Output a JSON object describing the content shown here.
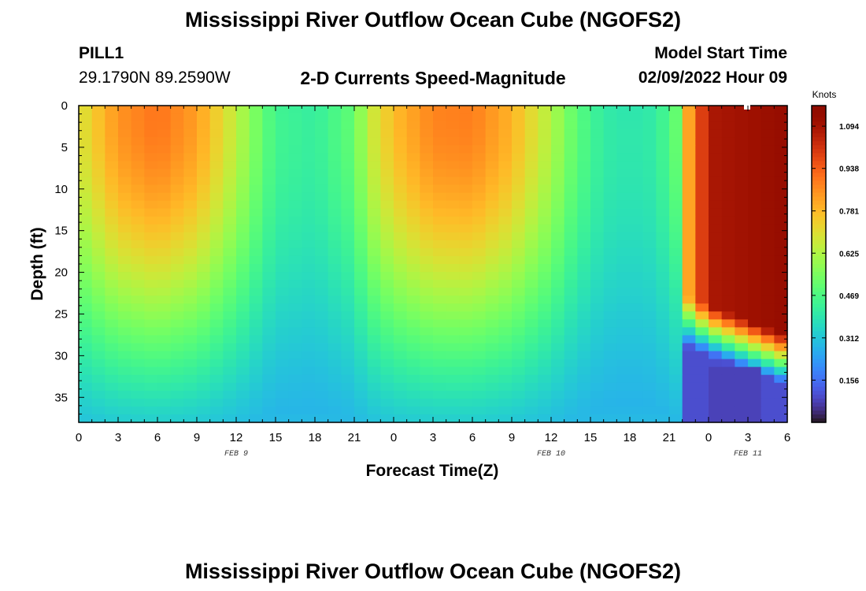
{
  "header": {
    "title": "Mississippi River Outflow Ocean Cube (NGOFS2)",
    "station_id": "PILL1",
    "station_coords": "29.1790N  89.2590W",
    "subtitle": "2-D Currents Speed-Magnitude",
    "model_start_label": "Model Start Time",
    "model_start_value": "02/09/2022 Hour 09"
  },
  "footer": {
    "title": "Mississippi River Outflow Ocean Cube (NGOFS2)"
  },
  "chart_data": {
    "type": "heatmap",
    "title": "2-D Currents Speed-Magnitude",
    "xlabel": "Forecast Time(Z)",
    "ylabel": "Depth (ft)",
    "x_tick_labels": [
      "0",
      "3",
      "6",
      "9",
      "12",
      "15",
      "18",
      "21",
      "0",
      "3",
      "6",
      "9",
      "12",
      "15",
      "18",
      "21",
      "0",
      "3",
      "6"
    ],
    "x_range_hours": [
      0,
      54
    ],
    "date_labels": [
      {
        "label": "FEB 9",
        "at_hour": 12
      },
      {
        "label": "FEB 10",
        "at_hour": 36
      },
      {
        "label": "FEB 11",
        "at_hour": 51
      }
    ],
    "y_ticks": [
      0,
      5,
      10,
      15,
      20,
      25,
      30,
      35
    ],
    "ylim": [
      0,
      38
    ],
    "colorbar": {
      "unit": "Knots",
      "min": 0.0,
      "max": 1.17,
      "tick_labels": [
        "1.094",
        "0.938",
        "0.781",
        "0.625",
        "0.469",
        "0.312",
        "0.156"
      ],
      "tick_values": [
        1.094,
        0.938,
        0.781,
        0.625,
        0.469,
        0.312,
        0.156
      ]
    },
    "grid": false
  }
}
